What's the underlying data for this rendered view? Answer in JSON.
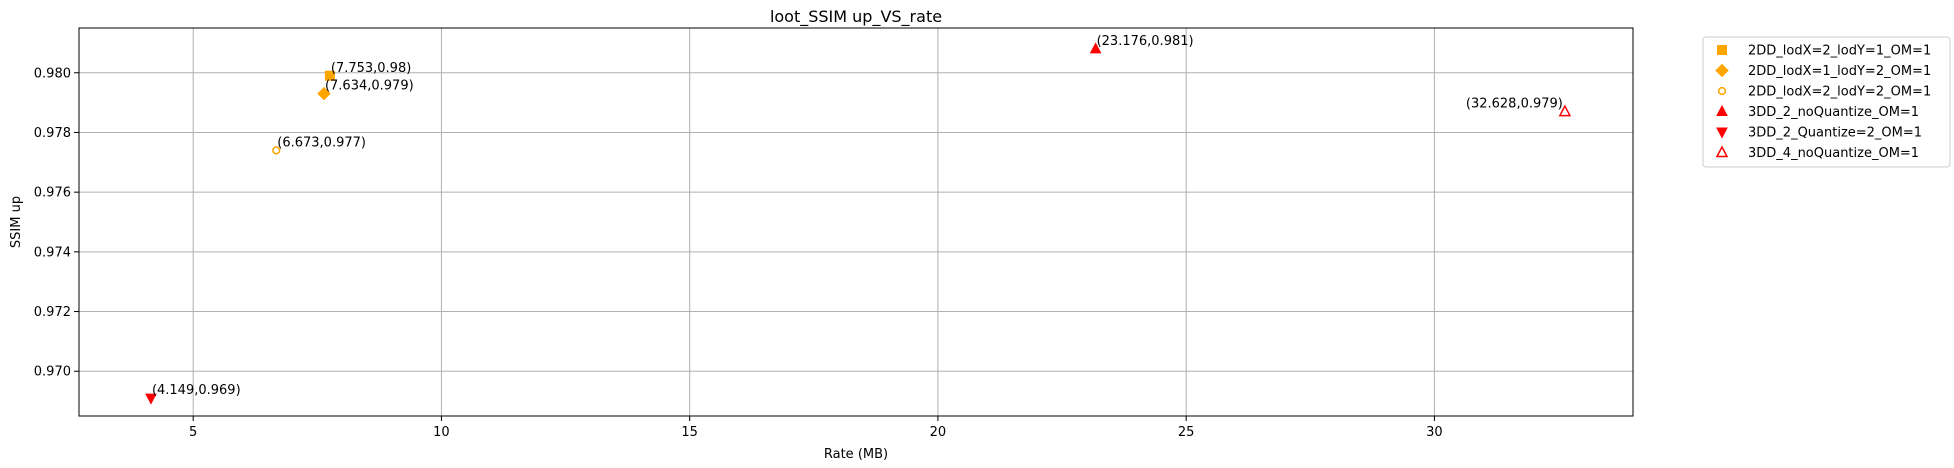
{
  "chart_data": {
    "type": "scatter",
    "title": "loot_SSIM up_VS_rate",
    "xlabel": "Rate (MB)",
    "ylabel": "SSIM up",
    "xlim": [
      2.7,
      34.0
    ],
    "ylim": [
      0.9685,
      0.9815
    ],
    "xticks": [
      5,
      10,
      15,
      20,
      25,
      30
    ],
    "xtick_labels": [
      "5",
      "10",
      "15",
      "20",
      "25",
      "30"
    ],
    "yticks": [
      0.97,
      0.972,
      0.974,
      0.976,
      0.978,
      0.98
    ],
    "ytick_labels": [
      "0.970",
      "0.972",
      "0.974",
      "0.976",
      "0.978",
      "0.980"
    ],
    "grid": true,
    "legend_position": "outside-top-right",
    "series": [
      {
        "name": "2DD_lodX=2_lodY=1_OM=1",
        "marker": "square",
        "color": "#ffa500",
        "fill": true,
        "points": [
          {
            "x": 7.753,
            "y": 0.9799,
            "label": "(7.753,0.98)",
            "label_align": "left"
          }
        ]
      },
      {
        "name": "2DD_lodX=1_lodY=2_OM=1",
        "marker": "diamond",
        "color": "#ffa500",
        "fill": true,
        "points": [
          {
            "x": 7.634,
            "y": 0.9793,
            "label": "(7.634,0.979)",
            "label_align": "left"
          }
        ]
      },
      {
        "name": "2DD_lodX=2_lodY=2_OM=1",
        "marker": "octagon",
        "color": "#ffa500",
        "fill": false,
        "points": [
          {
            "x": 6.673,
            "y": 0.9774,
            "label": "(6.673,0.977)",
            "label_align": "left"
          }
        ]
      },
      {
        "name": "3DD_2_noQuantize_OM=1",
        "marker": "triangle-up",
        "color": "#ff0000",
        "fill": true,
        "points": [
          {
            "x": 23.176,
            "y": 0.9808,
            "label": "(23.176,0.981)",
            "label_align": "left"
          }
        ]
      },
      {
        "name": "3DD_2_Quantize=2_OM=1",
        "marker": "triangle-down",
        "color": "#ff0000",
        "fill": true,
        "points": [
          {
            "x": 4.149,
            "y": 0.9691,
            "label": "(4.149,0.969)",
            "label_align": "left"
          }
        ]
      },
      {
        "name": "3DD_4_noQuantize_OM=1",
        "marker": "triangle-up",
        "color": "#ff0000",
        "fill": false,
        "points": [
          {
            "x": 32.628,
            "y": 0.9787,
            "label": "(32.628,0.979)",
            "label_align": "right"
          }
        ]
      }
    ]
  }
}
